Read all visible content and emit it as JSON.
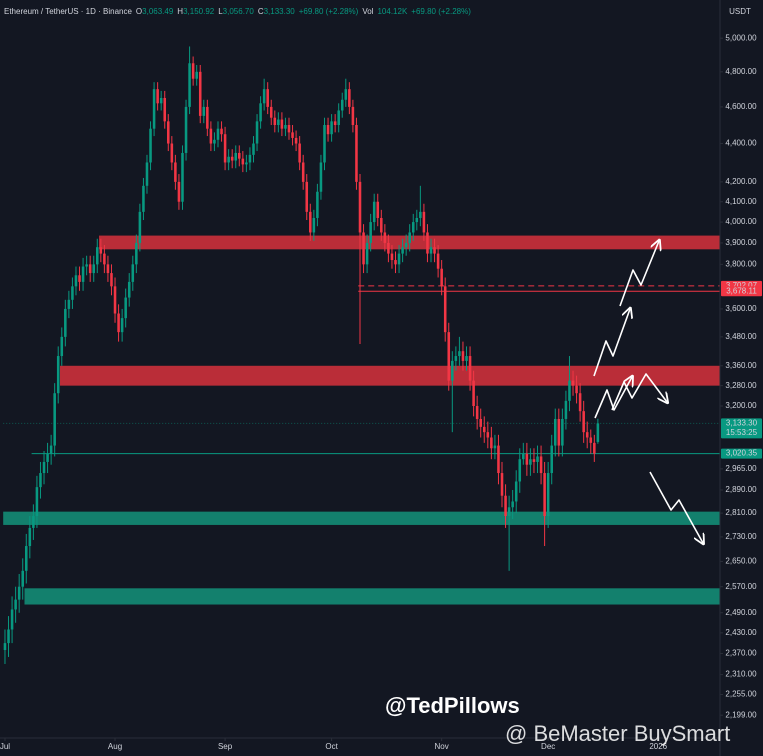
{
  "chart_data": {
    "type": "candlestick",
    "header": [
      "Ethereum / TetherUS · 1D · Binance",
      "O",
      "3,063.49",
      "H",
      "3,150.92",
      "L",
      "3,056.70",
      "C",
      "3,133.30",
      "+69.80 (+2.28%)",
      "Vol",
      "104.12K",
      "+69.80 (+2.28%)"
    ],
    "currency": "USDT",
    "log_scale": true,
    "up_color": "#089981",
    "down_color": "#f23645",
    "xlim": [
      -1.4,
      201.4
    ],
    "xticks": [
      {
        "value": 0,
        "label": "Jul"
      },
      {
        "value": 31,
        "label": "Aug"
      },
      {
        "value": 62,
        "label": "Sep"
      },
      {
        "value": 92,
        "label": "Oct"
      },
      {
        "value": 123,
        "label": "Nov"
      },
      {
        "value": 153,
        "label": "Dec"
      },
      {
        "value": 184,
        "label": "2026"
      }
    ],
    "ylim": [
      2139,
      5237
    ],
    "yticks": [
      {
        "value": 5000,
        "label": "5,000.00"
      },
      {
        "value": 4800,
        "label": "4,800.00"
      },
      {
        "value": 4600,
        "label": "4,600.00"
      },
      {
        "value": 4400,
        "label": "4,400.00"
      },
      {
        "value": 4200,
        "label": "4,200.00"
      },
      {
        "value": 4100,
        "label": "4,100.00"
      },
      {
        "value": 4000,
        "label": "4,000.00"
      },
      {
        "value": 3900,
        "label": "3,900.00"
      },
      {
        "value": 3800,
        "label": "3,800.00"
      },
      {
        "value": 3600,
        "label": "3,600.00"
      },
      {
        "value": 3480,
        "label": "3,480.00"
      },
      {
        "value": 3360,
        "label": "3,360.00"
      },
      {
        "value": 3280,
        "label": "3,280.00"
      },
      {
        "value": 3200,
        "label": "3,200.00"
      },
      {
        "value": 2965,
        "label": "2,965.00"
      },
      {
        "value": 2890,
        "label": "2,890.00"
      },
      {
        "value": 2810,
        "label": "2,810.00"
      },
      {
        "value": 2730,
        "label": "2,730.00"
      },
      {
        "value": 2650,
        "label": "2,650.00"
      },
      {
        "value": 2570,
        "label": "2,570.00"
      },
      {
        "value": 2490,
        "label": "2,490.00"
      },
      {
        "value": 2430,
        "label": "2,430.00"
      },
      {
        "value": 2370,
        "label": "2,370.00"
      },
      {
        "value": 2310,
        "label": "2,310.00"
      },
      {
        "value": 2255,
        "label": "2,255.00"
      },
      {
        "value": 2199,
        "label": "2,199.00"
      }
    ],
    "zones": [
      {
        "low": 3870,
        "high": 3935,
        "color": "#c9303b",
        "start": 27
      },
      {
        "low": 3280,
        "high": 3360,
        "color": "#c9303b",
        "start": 16
      },
      {
        "low": 2770,
        "high": 2815,
        "color": "#138a74",
        "start": 0
      },
      {
        "low": 2515,
        "high": 2565,
        "color": "#138a74",
        "start": 6
      }
    ],
    "levels": [
      {
        "value": 3702.07,
        "label": "3,702.07",
        "color": "#f23645",
        "style": "dashed",
        "start": 100
      },
      {
        "value": 3678.11,
        "label": "3,678.11",
        "color": "#f23645",
        "style": "solid",
        "start": 100
      },
      {
        "value": 3133.3,
        "label": "3,133.30",
        "countdown": "15:53:25",
        "color": "#089981",
        "style": "faint",
        "start": 0
      },
      {
        "value": 3020.35,
        "label": "3,020.35",
        "color": "#089981",
        "style": "solid",
        "start": 8
      }
    ],
    "watermarks": [
      "@TedPillows",
      "@ BeMaster BuySmart"
    ],
    "candles": [
      [
        2380,
        2440,
        2340,
        2400
      ],
      [
        2400,
        2480,
        2360,
        2440
      ],
      [
        2440,
        2540,
        2400,
        2500
      ],
      [
        2500,
        2570,
        2460,
        2530
      ],
      [
        2530,
        2610,
        2490,
        2570
      ],
      [
        2570,
        2660,
        2530,
        2620
      ],
      [
        2620,
        2740,
        2580,
        2700
      ],
      [
        2700,
        2800,
        2660,
        2760
      ],
      [
        2760,
        2840,
        2720,
        2800
      ],
      [
        2800,
        2940,
        2760,
        2900
      ],
      [
        2900,
        2990,
        2860,
        2950
      ],
      [
        2950,
        3030,
        2910,
        2990
      ],
      [
        2990,
        3060,
        2950,
        3020
      ],
      [
        3020,
        3090,
        2980,
        3050
      ],
      [
        3050,
        3290,
        3010,
        3250
      ],
      [
        3250,
        3440,
        3210,
        3400
      ],
      [
        3400,
        3520,
        3360,
        3480
      ],
      [
        3480,
        3640,
        3440,
        3600
      ],
      [
        3600,
        3680,
        3560,
        3640
      ],
      [
        3640,
        3740,
        3600,
        3700
      ],
      [
        3700,
        3790,
        3660,
        3750
      ],
      [
        3750,
        3790,
        3680,
        3720
      ],
      [
        3720,
        3830,
        3680,
        3790
      ],
      [
        3790,
        3840,
        3750,
        3800
      ],
      [
        3800,
        3840,
        3720,
        3760
      ],
      [
        3760,
        3840,
        3720,
        3800
      ],
      [
        3800,
        3920,
        3760,
        3880
      ],
      [
        3880,
        3920,
        3810,
        3850
      ],
      [
        3850,
        3890,
        3760,
        3800
      ],
      [
        3800,
        3840,
        3720,
        3760
      ],
      [
        3760,
        3800,
        3660,
        3700
      ],
      [
        3700,
        3740,
        3540,
        3580
      ],
      [
        3580,
        3620,
        3460,
        3500
      ],
      [
        3500,
        3600,
        3460,
        3560
      ],
      [
        3560,
        3690,
        3520,
        3650
      ],
      [
        3650,
        3760,
        3610,
        3720
      ],
      [
        3720,
        3840,
        3680,
        3800
      ],
      [
        3800,
        3940,
        3760,
        3900
      ],
      [
        3900,
        4090,
        3860,
        4050
      ],
      [
        4050,
        4220,
        4010,
        4180
      ],
      [
        4180,
        4340,
        4140,
        4300
      ],
      [
        4300,
        4520,
        4260,
        4480
      ],
      [
        4480,
        4740,
        4440,
        4700
      ],
      [
        4700,
        4740,
        4580,
        4620
      ],
      [
        4620,
        4690,
        4580,
        4650
      ],
      [
        4650,
        4690,
        4480,
        4520
      ],
      [
        4520,
        4560,
        4360,
        4400
      ],
      [
        4400,
        4440,
        4260,
        4300
      ],
      [
        4300,
        4340,
        4160,
        4200
      ],
      [
        4200,
        4240,
        4060,
        4100
      ],
      [
        4100,
        4390,
        4060,
        4350
      ],
      [
        4350,
        4640,
        4310,
        4600
      ],
      [
        4600,
        4950,
        4560,
        4850
      ],
      [
        4850,
        4890,
        4720,
        4760
      ],
      [
        4760,
        4840,
        4720,
        4800
      ],
      [
        4800,
        4840,
        4510,
        4550
      ],
      [
        4550,
        4640,
        4510,
        4600
      ],
      [
        4600,
        4640,
        4440,
        4480
      ],
      [
        4480,
        4520,
        4360,
        4400
      ],
      [
        4400,
        4460,
        4360,
        4420
      ],
      [
        4420,
        4520,
        4380,
        4480
      ],
      [
        4480,
        4520,
        4410,
        4450
      ],
      [
        4450,
        4490,
        4260,
        4300
      ],
      [
        4300,
        4370,
        4260,
        4330
      ],
      [
        4330,
        4370,
        4270,
        4310
      ],
      [
        4310,
        4390,
        4270,
        4350
      ],
      [
        4350,
        4390,
        4280,
        4320
      ],
      [
        4320,
        4360,
        4250,
        4290
      ],
      [
        4290,
        4340,
        4250,
        4300
      ],
      [
        4300,
        4380,
        4260,
        4340
      ],
      [
        4340,
        4440,
        4300,
        4400
      ],
      [
        4400,
        4560,
        4360,
        4520
      ],
      [
        4520,
        4660,
        4480,
        4620
      ],
      [
        4620,
        4760,
        4580,
        4700
      ],
      [
        4700,
        4740,
        4560,
        4600
      ],
      [
        4600,
        4640,
        4500,
        4540
      ],
      [
        4540,
        4580,
        4460,
        4500
      ],
      [
        4500,
        4570,
        4460,
        4530
      ],
      [
        4530,
        4570,
        4440,
        4480
      ],
      [
        4480,
        4540,
        4440,
        4500
      ],
      [
        4500,
        4540,
        4420,
        4460
      ],
      [
        4460,
        4500,
        4390,
        4430
      ],
      [
        4430,
        4470,
        4360,
        4400
      ],
      [
        4400,
        4440,
        4260,
        4300
      ],
      [
        4300,
        4340,
        4160,
        4200
      ],
      [
        4200,
        4240,
        4010,
        4050
      ],
      [
        4050,
        4090,
        3910,
        3950
      ],
      [
        3950,
        4060,
        3910,
        4020
      ],
      [
        4020,
        4190,
        3980,
        4150
      ],
      [
        4150,
        4340,
        4110,
        4300
      ],
      [
        4300,
        4540,
        4260,
        4500
      ],
      [
        4500,
        4540,
        4410,
        4450
      ],
      [
        4450,
        4560,
        4410,
        4520
      ],
      [
        4520,
        4560,
        4460,
        4500
      ],
      [
        4500,
        4620,
        4460,
        4580
      ],
      [
        4580,
        4680,
        4540,
        4640
      ],
      [
        4640,
        4760,
        4600,
        4700
      ],
      [
        4700,
        4740,
        4560,
        4600
      ],
      [
        4600,
        4640,
        4460,
        4500
      ],
      [
        4500,
        4540,
        4160,
        4200
      ],
      [
        4200,
        4240,
        3450,
        3950
      ],
      [
        3950,
        3990,
        3760,
        3800
      ],
      [
        3800,
        3940,
        3760,
        3900
      ],
      [
        3900,
        4040,
        3860,
        4000
      ],
      [
        4000,
        4140,
        3960,
        4100
      ],
      [
        4100,
        4140,
        3980,
        4020
      ],
      [
        4020,
        4060,
        3910,
        3950
      ],
      [
        3950,
        3990,
        3860,
        3900
      ],
      [
        3900,
        3940,
        3810,
        3850
      ],
      [
        3850,
        3890,
        3780,
        3820
      ],
      [
        3820,
        3860,
        3760,
        3800
      ],
      [
        3800,
        3890,
        3760,
        3850
      ],
      [
        3850,
        3920,
        3810,
        3880
      ],
      [
        3880,
        3940,
        3840,
        3900
      ],
      [
        3900,
        3990,
        3860,
        3950
      ],
      [
        3950,
        4040,
        3910,
        4000
      ],
      [
        4000,
        4060,
        3960,
        4020
      ],
      [
        4020,
        4180,
        3980,
        4050
      ],
      [
        4050,
        4090,
        3910,
        3950
      ],
      [
        3950,
        3990,
        3810,
        3850
      ],
      [
        3850,
        3920,
        3810,
        3880
      ],
      [
        3880,
        3920,
        3810,
        3850
      ],
      [
        3850,
        3890,
        3740,
        3780
      ],
      [
        3780,
        3820,
        3660,
        3700
      ],
      [
        3700,
        3740,
        3460,
        3500
      ],
      [
        3500,
        3540,
        3260,
        3300
      ],
      [
        3300,
        3420,
        3100,
        3380
      ],
      [
        3380,
        3440,
        3340,
        3400
      ],
      [
        3400,
        3480,
        3360,
        3420
      ],
      [
        3420,
        3460,
        3340,
        3380
      ],
      [
        3380,
        3440,
        3340,
        3400
      ],
      [
        3400,
        3440,
        3260,
        3300
      ],
      [
        3300,
        3340,
        3160,
        3200
      ],
      [
        3200,
        3240,
        3110,
        3150
      ],
      [
        3150,
        3190,
        3080,
        3120
      ],
      [
        3120,
        3160,
        3060,
        3100
      ],
      [
        3100,
        3140,
        3040,
        3080
      ],
      [
        3080,
        3120,
        3000,
        3040
      ],
      [
        3040,
        3090,
        3000,
        3050
      ],
      [
        3050,
        3090,
        2910,
        2950
      ],
      [
        2950,
        2990,
        2830,
        2870
      ],
      [
        2870,
        2910,
        2760,
        2800
      ],
      [
        2800,
        2870,
        2620,
        2830
      ],
      [
        2830,
        2890,
        2790,
        2850
      ],
      [
        2850,
        2960,
        2810,
        2920
      ],
      [
        2920,
        3040,
        2880,
        3000
      ],
      [
        3000,
        3060,
        2980,
        3020
      ],
      [
        3020,
        3060,
        2940,
        2980
      ],
      [
        2980,
        3040,
        2940,
        3000
      ],
      [
        3000,
        3040,
        2950,
        2990
      ],
      [
        2990,
        3050,
        2950,
        3010
      ],
      [
        3010,
        3050,
        2910,
        2950
      ],
      [
        2950,
        2990,
        2700,
        2800
      ],
      [
        2800,
        2990,
        2760,
        2950
      ],
      [
        2950,
        3090,
        2910,
        3050
      ],
      [
        3050,
        3190,
        3010,
        3150
      ],
      [
        3150,
        3190,
        3010,
        3050
      ],
      [
        3050,
        3190,
        3010,
        3150
      ],
      [
        3150,
        3260,
        3110,
        3220
      ],
      [
        3220,
        3400,
        3180,
        3300
      ],
      [
        3300,
        3340,
        3240,
        3280
      ],
      [
        3280,
        3320,
        3210,
        3250
      ],
      [
        3250,
        3290,
        3140,
        3180
      ],
      [
        3180,
        3220,
        3060,
        3100
      ],
      [
        3100,
        3140,
        3040,
        3080
      ],
      [
        3080,
        3110,
        3020,
        3060
      ],
      [
        3060,
        3090,
        2990,
        3020
      ],
      [
        3063.49,
        3150.92,
        3056.7,
        3133.3
      ]
    ]
  }
}
